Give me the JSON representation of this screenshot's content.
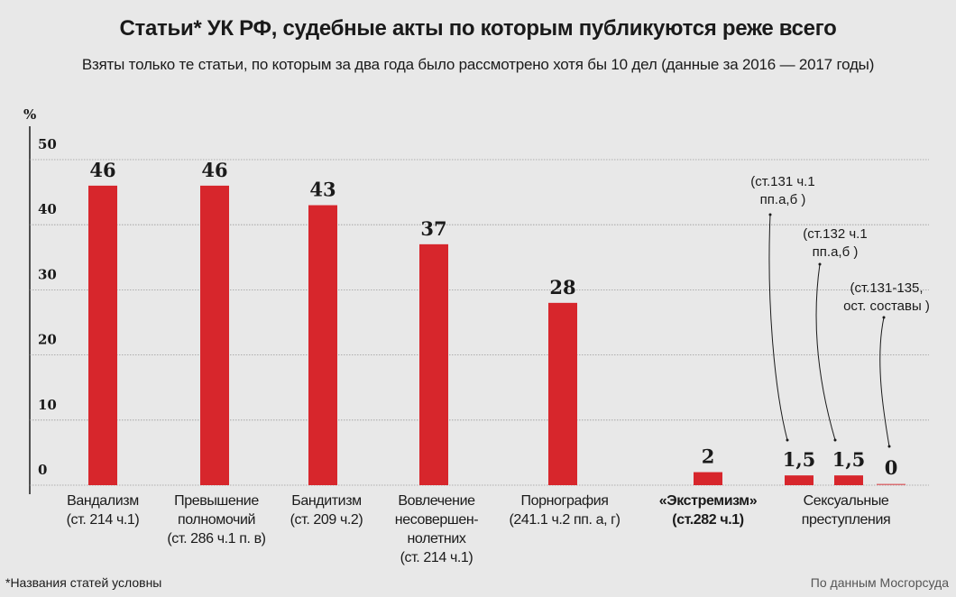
{
  "chart_data": {
    "type": "bar",
    "title": "Статьи* УК РФ, судебные акты по которым публикуются реже всего",
    "subtitle": "Взяты только те статьи, по которым за два года было рассмотрено хотя бы 10 дел (данные за 2016 — 2017 годы)",
    "ylabel": "%",
    "ylim": [
      0,
      50
    ],
    "yticks": [
      "0",
      "10",
      "20",
      "30",
      "40",
      "50"
    ],
    "grid": true,
    "bar_color": "#d7262c",
    "categories": [
      {
        "lines": [
          "Вандализм",
          "(ст. 214 ч.1)"
        ],
        "bold": false
      },
      {
        "lines": [
          "Превышение",
          "полномочий",
          "(ст. 286 ч.1 п. в)"
        ],
        "bold": false
      },
      {
        "lines": [
          "Бандитизм",
          "(ст. 209 ч.2)"
        ],
        "bold": false
      },
      {
        "lines": [
          "Вовлечение",
          "несовершен-",
          "нолетних",
          "(ст. 214 ч.1)"
        ],
        "bold": false
      },
      {
        "lines": [
          "Порнография",
          "(241.1 ч.2 пп. а, г)"
        ],
        "bold": false
      },
      {
        "lines": [
          "«Экстремизм»",
          "(ст.282 ч.1)"
        ],
        "bold": true
      },
      {
        "lines": [
          "Сексуальные",
          "преступления"
        ],
        "bold": false
      }
    ],
    "bars": [
      {
        "category": 0,
        "value": 46,
        "label": "46"
      },
      {
        "category": 1,
        "value": 46,
        "label": "46"
      },
      {
        "category": 2,
        "value": 43,
        "label": "43"
      },
      {
        "category": 3,
        "value": 37,
        "label": "37"
      },
      {
        "category": 4,
        "value": 28,
        "label": "28"
      },
      {
        "category": 5,
        "value": 2,
        "label": "2"
      },
      {
        "category": 6,
        "value": 1.5,
        "label": "1,5",
        "annotation": [
          "(ст.131 ч.1",
          "пп.а,б )"
        ]
      },
      {
        "category": 6,
        "value": 1.5,
        "label": "1,5",
        "annotation": [
          "(ст.132 ч.1",
          "пп.а,б )"
        ]
      },
      {
        "category": 6,
        "value": 0,
        "label": "0",
        "annotation": [
          "(ст.131-135,",
          "ост. составы )"
        ]
      }
    ]
  },
  "footnote": "*Названия статей условны",
  "source": "По данным Мосгорсуда"
}
